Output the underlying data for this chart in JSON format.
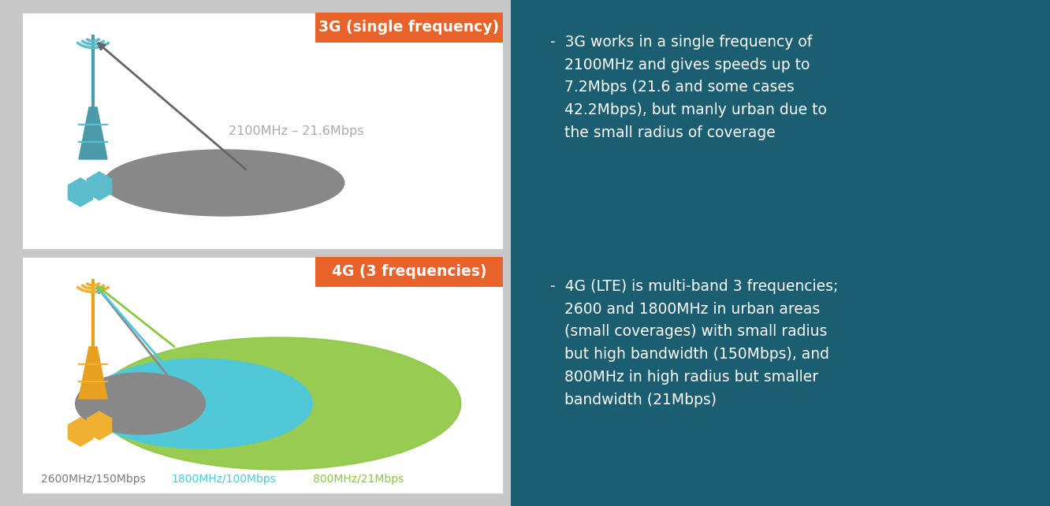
{
  "bg_color": "#c8c8c8",
  "panel_bg": "#ffffff",
  "right_bg": "#1b5e72",
  "orange_label_bg": "#e8622a",
  "label_3g": "3G (single frequency)",
  "label_4g": "4G (3 frequencies)",
  "freq_3g": "2100MHz – 21.6Mbps",
  "freq_4g_gray": "2600MHz/150Mbps",
  "freq_4g_blue": "1800MHz/100Mbps",
  "freq_4g_green": "800MHz/21Mbps",
  "text_color_gray": "#7a7a7a",
  "text_color_blue": "#4dc8e0",
  "text_color_green": "#8dc63f",
  "teal_tower_color": "#5bbccc",
  "teal_dark": "#4a9aaa",
  "orange_tower": "#e8a020",
  "orange_hex": "#f0b030",
  "gray_ellipse": "#888888",
  "blue_ellipse": "#4dc8e0",
  "green_ellipse": "#8dc63f",
  "arrow_color_3g": "#666666",
  "bullet1_line1": "-  3G works in a single frequency of",
  "bullet1_line2": "   2100MHz and gives speeds up to",
  "bullet1_line3": "   7.2Mbps (21.6 and some cases",
  "bullet1_line4": "   42.2Mbps), but manly urban due to",
  "bullet1_line5": "   the small radius of coverage",
  "bullet2_line1": "-  4G (LTE) is multi-band 3 frequencies;",
  "bullet2_line2": "   2600 and 1800MHz in urban areas",
  "bullet2_line3": "   (small coverages) with small radius",
  "bullet2_line4": "   but high bandwidth (150Mbps), and",
  "bullet2_line5": "   800MHz in high radius but smaller",
  "bullet2_line6": "   bandwidth (21Mbps)"
}
